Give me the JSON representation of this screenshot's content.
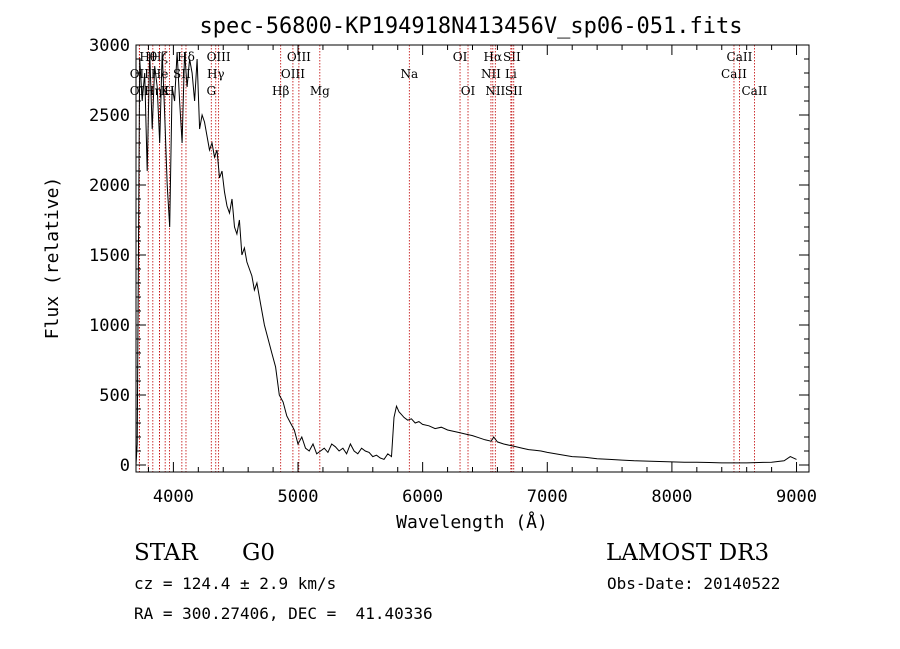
{
  "chart_data": {
    "type": "line",
    "title": "spec-56800-KP194918N413456V_sp06-051.fits",
    "xlabel": "Wavelength (Å)",
    "ylabel": "Flux (relative)",
    "xlim": [
      3700,
      9100
    ],
    "ylim": [
      -50,
      3000
    ],
    "xticks": [
      4000,
      5000,
      6000,
      7000,
      8000,
      9000
    ],
    "yticks": [
      0,
      500,
      1000,
      1500,
      2000,
      2500,
      3000
    ],
    "series": [
      {
        "name": "flux",
        "x": [
          3700,
          3710,
          3730,
          3750,
          3770,
          3790,
          3810,
          3830,
          3850,
          3870,
          3890,
          3910,
          3930,
          3950,
          3970,
          3990,
          4010,
          4030,
          4050,
          4070,
          4090,
          4110,
          4130,
          4150,
          4170,
          4190,
          4210,
          4230,
          4250,
          4270,
          4290,
          4310,
          4330,
          4350,
          4370,
          4390,
          4410,
          4430,
          4450,
          4470,
          4490,
          4510,
          4530,
          4550,
          4570,
          4590,
          4610,
          4630,
          4650,
          4670,
          4700,
          4730,
          4760,
          4790,
          4820,
          4850,
          4880,
          4910,
          4940,
          4970,
          5000,
          5030,
          5060,
          5090,
          5120,
          5150,
          5180,
          5210,
          5240,
          5270,
          5300,
          5330,
          5360,
          5390,
          5420,
          5450,
          5480,
          5510,
          5540,
          5570,
          5600,
          5630,
          5660,
          5690,
          5720,
          5750,
          5770,
          5790,
          5810,
          5830,
          5850,
          5880,
          5910,
          5940,
          5970,
          6000,
          6050,
          6100,
          6150,
          6200,
          6250,
          6300,
          6350,
          6400,
          6450,
          6500,
          6550,
          6570,
          6600,
          6650,
          6700,
          6750,
          6800,
          6850,
          6900,
          6950,
          7000,
          7100,
          7200,
          7300,
          7400,
          7500,
          7600,
          7700,
          7800,
          7900,
          8000,
          8100,
          8200,
          8300,
          8400,
          8500,
          8600,
          8700,
          8800,
          8900,
          8950,
          9000
        ],
        "values": [
          0,
          150,
          2900,
          2600,
          2800,
          2100,
          2950,
          2400,
          2850,
          2700,
          2300,
          2950,
          2500,
          2000,
          1700,
          2700,
          2600,
          2950,
          2600,
          2300,
          2950,
          2700,
          2900,
          2800,
          2600,
          2900,
          2400,
          2500,
          2450,
          2350,
          2250,
          2300,
          2200,
          2250,
          2050,
          2100,
          1950,
          1850,
          1800,
          1900,
          1700,
          1650,
          1750,
          1500,
          1550,
          1450,
          1400,
          1350,
          1250,
          1300,
          1150,
          1000,
          900,
          800,
          700,
          500,
          450,
          350,
          300,
          250,
          150,
          200,
          120,
          100,
          150,
          80,
          100,
          120,
          90,
          150,
          130,
          100,
          120,
          80,
          150,
          100,
          80,
          120,
          100,
          90,
          60,
          70,
          50,
          40,
          80,
          60,
          340,
          420,
          380,
          360,
          340,
          320,
          330,
          300,
          310,
          290,
          280,
          260,
          270,
          250,
          240,
          230,
          220,
          210,
          195,
          180,
          170,
          200,
          165,
          150,
          140,
          130,
          120,
          110,
          105,
          100,
          90,
          75,
          60,
          55,
          45,
          40,
          35,
          30,
          28,
          25,
          22,
          20,
          20,
          18,
          15,
          15,
          15,
          18,
          20,
          30,
          60,
          40
        ]
      }
    ],
    "lines": [
      {
        "name": "OII",
        "wl": 3727,
        "row": 2
      },
      {
        "name": "OII",
        "wl": 3727,
        "row": 1
      },
      {
        "name": "Hθ",
        "wl": 3798,
        "row": 0
      },
      {
        "name": "Hη",
        "wl": 3835,
        "row": 2
      },
      {
        "name": "Hζ",
        "wl": 3889,
        "row": 0
      },
      {
        "name": "He",
        "wl": 3889,
        "row": 1
      },
      {
        "name": "K",
        "wl": 3934,
        "row": 2
      },
      {
        "name": "H",
        "wl": 3968,
        "row": 2
      },
      {
        "name": "SII",
        "wl": 4068,
        "row": 1
      },
      {
        "name": "Hδ",
        "wl": 4101,
        "row": 0
      },
      {
        "name": "G",
        "wl": 4304,
        "row": 2
      },
      {
        "name": "Hγ",
        "wl": 4340,
        "row": 1
      },
      {
        "name": "OIII",
        "wl": 4363,
        "row": 0
      },
      {
        "name": "Hβ",
        "wl": 4861,
        "row": 2
      },
      {
        "name": "OIII",
        "wl": 4959,
        "row": 1
      },
      {
        "name": "OIII",
        "wl": 5007,
        "row": 0
      },
      {
        "name": "Mg",
        "wl": 5175,
        "row": 2
      },
      {
        "name": "Na",
        "wl": 5893,
        "row": 1
      },
      {
        "name": "OI",
        "wl": 6300,
        "row": 0
      },
      {
        "name": "OI",
        "wl": 6364,
        "row": 2
      },
      {
        "name": "NII",
        "wl": 6548,
        "row": 1
      },
      {
        "name": "Hα",
        "wl": 6563,
        "row": 0
      },
      {
        "name": "NII",
        "wl": 6583,
        "row": 2
      },
      {
        "name": "Li",
        "wl": 6708,
        "row": 1
      },
      {
        "name": "SII",
        "wl": 6716,
        "row": 0
      },
      {
        "name": "SII",
        "wl": 6731,
        "row": 2
      },
      {
        "name": "CaII",
        "wl": 8498,
        "row": 1
      },
      {
        "name": "CaII",
        "wl": 8542,
        "row": 0
      },
      {
        "name": "CaII",
        "wl": 8662,
        "row": 2
      }
    ]
  },
  "info": {
    "class": "STAR",
    "subclass": "G0",
    "survey": "LAMOST DR3",
    "cz": "cz = 124.4 ± 2.9 km/s",
    "obs_date": "Obs-Date: 20140522",
    "radec": "RA = 300.27406, DEC =  41.40336"
  },
  "colors": {
    "line_marker": "#c00000",
    "spectrum": "#000000",
    "axis": "#000000"
  }
}
